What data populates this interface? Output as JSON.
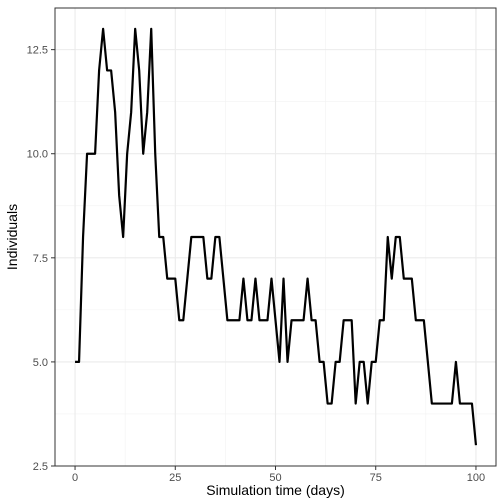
{
  "chart_data": {
    "type": "line",
    "title": "",
    "xlabel": "Simulation time (days)",
    "ylabel": "Individuals",
    "xlim": [
      -5,
      105
    ],
    "ylim": [
      2.5,
      13.5
    ],
    "x_ticks": [
      0,
      25,
      50,
      75,
      100
    ],
    "x_tick_labels": [
      "0",
      "25",
      "50",
      "75",
      "100"
    ],
    "y_ticks": [
      2.5,
      5.0,
      7.5,
      10.0,
      12.5
    ],
    "y_tick_labels": [
      "2.5",
      "5.0",
      "7.5",
      "10.0",
      "12.5"
    ],
    "grid": true,
    "series": [
      {
        "color": "#000000",
        "x": [
          0,
          1,
          2,
          3,
          4,
          5,
          6,
          7,
          8,
          9,
          10,
          11,
          12,
          13,
          14,
          15,
          16,
          17,
          18,
          19,
          20,
          21,
          22,
          23,
          24,
          25,
          26,
          27,
          28,
          29,
          30,
          31,
          32,
          33,
          34,
          35,
          36,
          37,
          38,
          39,
          40,
          41,
          42,
          43,
          44,
          45,
          46,
          47,
          48,
          49,
          50,
          51,
          52,
          53,
          54,
          55,
          56,
          57,
          58,
          59,
          60,
          61,
          62,
          63,
          64,
          65,
          66,
          67,
          68,
          69,
          70,
          71,
          72,
          73,
          74,
          75,
          76,
          77,
          78,
          79,
          80,
          81,
          82,
          83,
          84,
          85,
          86,
          87,
          88,
          89,
          90,
          91,
          92,
          93,
          94,
          95,
          96,
          97,
          98,
          99,
          100
        ],
        "y": [
          5,
          5,
          8,
          10,
          10,
          10,
          12,
          13,
          12,
          12,
          11,
          9,
          8,
          10,
          11,
          13,
          12,
          10,
          11,
          13,
          10,
          8,
          8,
          7,
          7,
          7,
          6,
          6,
          7,
          8,
          8,
          8,
          8,
          7,
          7,
          8,
          8,
          7,
          6,
          6,
          6,
          6,
          7,
          6,
          6,
          7,
          6,
          6,
          6,
          7,
          6,
          5,
          7,
          5,
          6,
          6,
          6,
          6,
          7,
          6,
          6,
          5,
          5,
          4,
          4,
          5,
          5,
          6,
          6,
          6,
          4,
          5,
          5,
          4,
          5,
          5,
          6,
          6,
          8,
          7,
          8,
          8,
          7,
          7,
          7,
          6,
          6,
          6,
          5,
          4,
          4,
          4,
          4,
          4,
          4,
          5,
          4,
          4,
          4,
          4,
          3
        ]
      }
    ]
  }
}
